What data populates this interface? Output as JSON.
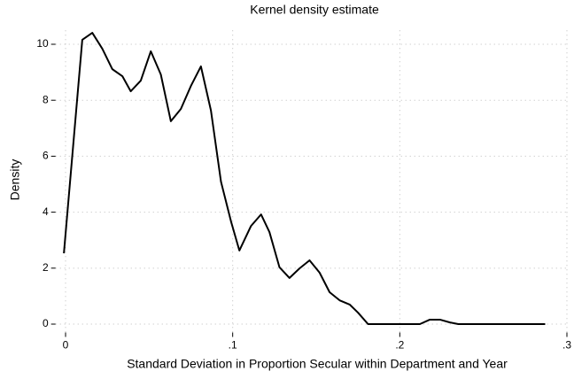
{
  "chart_data": {
    "type": "line",
    "title": "Kernel density estimate",
    "x_label": "Standard Deviation in Proportion Secular within Department and Year",
    "y_label": "Density",
    "x": [
      -0.001,
      0.01,
      0.016,
      0.022,
      0.028,
      0.034,
      0.039,
      0.045,
      0.051,
      0.057,
      0.063,
      0.069,
      0.075,
      0.081,
      0.087,
      0.093,
      0.099,
      0.104,
      0.111,
      0.117,
      0.122,
      0.128,
      0.134,
      0.14,
      0.146,
      0.152,
      0.158,
      0.164,
      0.17,
      0.175,
      0.181,
      0.187,
      0.193,
      0.199,
      0.205,
      0.212,
      0.218,
      0.224,
      0.23,
      0.235,
      0.241,
      0.247,
      0.253,
      0.259,
      0.265,
      0.271,
      0.277,
      0.283,
      0.287
    ],
    "series": [
      {
        "color": "#000000",
        "values": [
          2.53,
          10.16,
          10.41,
          9.84,
          9.11,
          8.86,
          8.32,
          8.7,
          9.75,
          8.92,
          7.25,
          7.69,
          8.51,
          9.21,
          7.63,
          5.09,
          3.67,
          2.63,
          3.51,
          3.92,
          3.29,
          2.03,
          1.65,
          1.99,
          2.28,
          1.84,
          1.14,
          0.85,
          0.7,
          0.41,
          0,
          0,
          0,
          0,
          0,
          0,
          0.16,
          0.16,
          0.06,
          0,
          0,
          0,
          0,
          0,
          0,
          0,
          0,
          0,
          0
        ]
      }
    ],
    "xlim": [
      -0.006,
      0.3
    ],
    "ylim": [
      -0.3,
      10.5
    ],
    "xticks": [
      0,
      {
        "value": 0.1,
        "label": ".1"
      },
      {
        "value": 0.2,
        "label": ".2"
      },
      {
        "value": 0.3,
        "label": ".3"
      }
    ],
    "yticks": [
      0,
      2,
      4,
      6,
      8,
      10
    ],
    "grid": true
  }
}
